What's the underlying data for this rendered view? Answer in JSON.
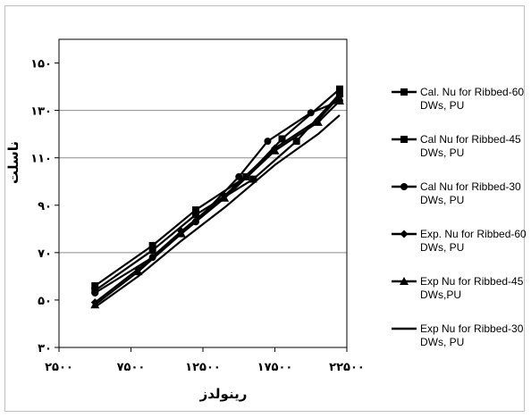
{
  "chart_data": {
    "type": "line",
    "title": "",
    "xlabel": "رینولدز",
    "ylabel": "ناسلت",
    "xlim": [
      2500,
      22500
    ],
    "ylim": [
      30,
      160
    ],
    "x_ticks": [
      2500,
      7500,
      12500,
      17500,
      22500
    ],
    "x_tick_labels": [
      "۲۵۰۰",
      "۷۵۰۰",
      "۱۲۵۰۰",
      "۱۷۵۰۰",
      "۲۲۵۰۰"
    ],
    "y_ticks": [
      30,
      50,
      70,
      90,
      110,
      130,
      150
    ],
    "y_tick_labels": [
      "۳۰",
      "۵۰",
      "۷۰",
      "۹۰",
      "۱۱۰",
      "۱۳۰",
      "۱۵۰"
    ],
    "grid": "horizontal",
    "gridlines_y": [
      70,
      110,
      130
    ],
    "legend_position": "right",
    "series": [
      {
        "name": "Cal. Nu for Ribbed-60 DWs, PU",
        "marker": "square",
        "x": [
          5000,
          9000,
          12000,
          15500,
          18000,
          22000
        ],
        "y": [
          56,
          73,
          88,
          102,
          118,
          139
        ]
      },
      {
        "name": "Cal Nu for Ribbed-45 DWs, PU",
        "marker": "square",
        "x": [
          5000,
          9000,
          12000,
          16000,
          19000,
          22000
        ],
        "y": [
          54,
          71,
          86,
          101,
          117,
          137
        ]
      },
      {
        "name": "Cal Nu for Ribbed-30 DWs, PU",
        "marker": "circle",
        "x": [
          5000,
          9000,
          12000,
          15000,
          17000,
          20000,
          22000
        ],
        "y": [
          53,
          68,
          83,
          102,
          117,
          129,
          134
        ]
      },
      {
        "name": "Exp. Nu for Ribbed-60 DWs, PU",
        "marker": "diamond",
        "x": [
          5000,
          8000,
          11000,
          14000,
          17500,
          20500,
          22000
        ],
        "y": [
          49,
          63,
          79,
          94,
          114,
          126,
          136
        ]
      },
      {
        "name": "Exp Nu for Ribbed-45 DWs,PU",
        "marker": "triangle",
        "x": [
          5000,
          8000,
          11000,
          14000,
          17500,
          20500,
          22000
        ],
        "y": [
          48,
          62,
          78,
          93,
          113,
          125,
          134
        ]
      },
      {
        "name": "Exp Nu for Ribbed-30 DWs, PU",
        "marker": "none",
        "x": [
          5000,
          8000,
          11000,
          14000,
          17500,
          20500,
          22000
        ],
        "y": [
          47,
          60,
          75,
          89,
          107,
          120,
          128
        ]
      }
    ]
  }
}
